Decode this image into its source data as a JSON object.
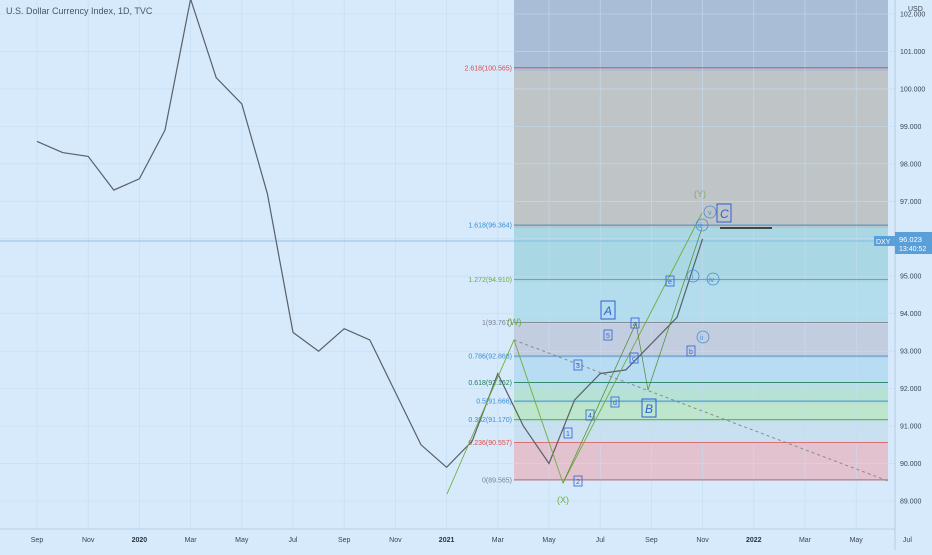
{
  "header": {
    "title": "U.S. Dollar Currency Index, 1D, TVC",
    "currency": "USD"
  },
  "colors": {
    "background": "#d6eafc",
    "price": "#5a6068",
    "wave": "#6fae3a",
    "fib_red": "#e24a4a",
    "fib_blue": "#3a8fd0",
    "fib_gray": "#7a8190",
    "box_label_border": "#2f5fd6",
    "price_tag": "#5b9fd8"
  },
  "chart_data": {
    "type": "line",
    "ylim": [
      88.7,
      102.5
    ],
    "x_ticks": [
      "Sep",
      "Nov",
      "2020",
      "Mar",
      "May",
      "Jul",
      "Sep",
      "Nov",
      "2021",
      "Mar",
      "May",
      "Jul",
      "Sep",
      "Nov",
      "2022",
      "Mar",
      "May",
      "Jul"
    ],
    "x_ticks_bold": [
      "2020",
      "2021",
      "2022"
    ],
    "y_ticks": [
      89.0,
      90.0,
      91.0,
      92.0,
      93.0,
      94.0,
      95.0,
      96.0,
      97.0,
      98.0,
      99.0,
      100.0,
      101.0,
      102.0
    ],
    "y_tick_labels": [
      "89.000",
      "90.000",
      "91.000",
      "92.000",
      "93.000",
      "94.000",
      "95.000",
      "96.000",
      "97.000",
      "98.000",
      "99.000",
      "100.000",
      "101.000",
      "102.000"
    ],
    "last_price": {
      "symbol": "DXY",
      "value": "96.023",
      "countdown": "13:40:52",
      "y": 96.023
    },
    "series": [
      {
        "points": [
          [
            "2019-09",
            98.6
          ],
          [
            "2019-10",
            98.3
          ],
          [
            "2019-11",
            98.2
          ],
          [
            "2019-12",
            97.3
          ],
          [
            "2020-01",
            97.6
          ],
          [
            "2020-02",
            98.9
          ],
          [
            "2020-03",
            102.4
          ],
          [
            "2020-04",
            100.3
          ],
          [
            "2020-05",
            99.6
          ],
          [
            "2020-06",
            97.2
          ],
          [
            "2020-07",
            93.5
          ],
          [
            "2020-08",
            93.0
          ],
          [
            "2020-09",
            93.6
          ],
          [
            "2020-10",
            93.3
          ],
          [
            "2020-11",
            91.9
          ],
          [
            "2020-12",
            90.5
          ],
          [
            "2021-01",
            89.9
          ],
          [
            "2021-02",
            90.6
          ],
          [
            "2021-03",
            92.4
          ],
          [
            "2021-04",
            91.0
          ],
          [
            "2021-05",
            90.0
          ],
          [
            "2021-06",
            91.7
          ],
          [
            "2021-07",
            92.4
          ],
          [
            "2021-08",
            92.5
          ],
          [
            "2021-09",
            93.2
          ],
          [
            "2021-10",
            93.9
          ],
          [
            "2021-11",
            96.0
          ]
        ]
      }
    ],
    "fib_levels": [
      {
        "label": "0(89.565)",
        "value": 89.565,
        "color": "#7a8190"
      },
      {
        "label": "0.236(90.557)",
        "value": 90.557,
        "color": "#e24a4a"
      },
      {
        "label": "0.382(91.170)",
        "value": 91.17,
        "color": "#3a8fd0"
      },
      {
        "label": "0.5(91.666)",
        "value": 91.666,
        "color": "#3a8fd0"
      },
      {
        "label": "0.618(92.162)",
        "value": 92.162,
        "color": "#1f7f5a"
      },
      {
        "label": "0.786(92.868)",
        "value": 92.868,
        "color": "#3a8fd0"
      },
      {
        "label": "1(93.767)",
        "value": 93.767,
        "color": "#7a8190"
      },
      {
        "label": "1.272(94.910)",
        "value": 94.91,
        "color": "#6fae3a"
      },
      {
        "label": "1.618(96.364)",
        "value": 96.364,
        "color": "#3a8fd0"
      },
      {
        "label": "2.618(100.565)",
        "value": 100.565,
        "color": "#e24a4a"
      }
    ],
    "wave_labels": {
      "W": "(W)",
      "X": "(X)",
      "Y": "(Y)",
      "A": "A",
      "B": "B",
      "C": "C",
      "n1": "1",
      "n2": "2",
      "n3": "3",
      "n4": "4",
      "n5": "5",
      "a": "a",
      "b": "b",
      "c": "c",
      "d": "d",
      "e": "e",
      "i": "i",
      "ii": "ii",
      "iii": "iii",
      "iv": "iv",
      "v": "v"
    }
  }
}
